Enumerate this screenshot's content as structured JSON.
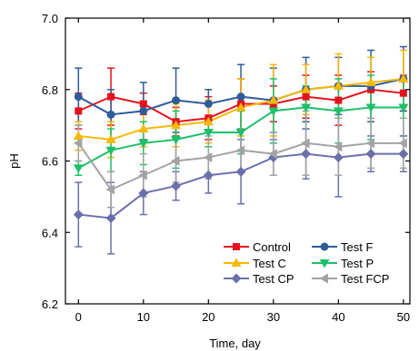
{
  "chart_data": {
    "type": "line",
    "title": "",
    "xlabel": "Time, day",
    "ylabel": "pH",
    "xlim": [
      -2,
      51
    ],
    "ylim": [
      6.2,
      7.0
    ],
    "xticks": [
      0,
      10,
      20,
      30,
      40,
      50
    ],
    "yticks": [
      6.2,
      6.4,
      6.6,
      6.8,
      7.0
    ],
    "xtick_labels": [
      "0",
      "10",
      "20",
      "30",
      "40",
      "50"
    ],
    "ytick_labels": [
      "6.2",
      "6.4",
      "6.6",
      "6.8",
      "7.0"
    ],
    "grid": false,
    "legend_position": "bottom-right",
    "x": [
      0,
      5,
      10,
      15,
      20,
      25,
      30,
      35,
      40,
      45,
      50
    ],
    "series": [
      {
        "name": "Control",
        "color": "#e3121c",
        "marker": "square",
        "values": [
          6.74,
          6.78,
          6.76,
          6.71,
          6.72,
          6.76,
          6.76,
          6.78,
          6.77,
          6.8,
          6.79
        ],
        "errors": [
          0.05,
          0.08,
          0.03,
          0.04,
          0.06,
          0.07,
          0.05,
          0.06,
          0.07,
          0.05,
          0.05
        ]
      },
      {
        "name": "Test F",
        "color": "#2e5c9a",
        "marker": "circle",
        "values": [
          6.78,
          6.73,
          6.74,
          6.77,
          6.76,
          6.78,
          6.77,
          6.8,
          6.81,
          6.81,
          6.83
        ],
        "errors": [
          0.08,
          0.07,
          0.08,
          0.09,
          0.04,
          0.09,
          0.09,
          0.09,
          0.08,
          0.1,
          0.09
        ]
      },
      {
        "name": "Test C",
        "color": "#f5b800",
        "marker": "triangle-up",
        "values": [
          6.67,
          6.66,
          6.69,
          6.7,
          6.71,
          6.75,
          6.77,
          6.8,
          6.81,
          6.82,
          6.83
        ],
        "errors": [
          0.04,
          0.05,
          0.05,
          0.06,
          0.06,
          0.08,
          0.1,
          0.07,
          0.09,
          0.07,
          0.08
        ]
      },
      {
        "name": "Test P",
        "color": "#1fbf6a",
        "marker": "triangle-down",
        "values": [
          6.58,
          6.63,
          6.65,
          6.66,
          6.68,
          6.68,
          6.74,
          6.75,
          6.74,
          6.75,
          6.75
        ],
        "errors": [
          0.02,
          0.06,
          0.06,
          0.08,
          0.04,
          0.06,
          0.09,
          0.06,
          0.09,
          0.09,
          0.08
        ]
      },
      {
        "name": "Test CP",
        "color": "#6d6fab",
        "marker": "diamond",
        "values": [
          6.45,
          6.44,
          6.51,
          6.53,
          6.56,
          6.57,
          6.61,
          6.62,
          6.61,
          6.62,
          6.62
        ],
        "errors": [
          0.09,
          0.1,
          0.06,
          0.04,
          0.05,
          0.09,
          0.05,
          0.07,
          0.11,
          0.05,
          0.05
        ]
      },
      {
        "name": "Test FCP",
        "color": "#a3a3a3",
        "marker": "triangle-left",
        "values": [
          6.65,
          6.52,
          6.56,
          6.6,
          6.61,
          6.63,
          6.62,
          6.65,
          6.64,
          6.65,
          6.65
        ],
        "errors": [
          0.05,
          0.05,
          0.06,
          0.06,
          0.06,
          0.06,
          0.06,
          0.09,
          0.08,
          0.07,
          0.07
        ]
      }
    ]
  }
}
